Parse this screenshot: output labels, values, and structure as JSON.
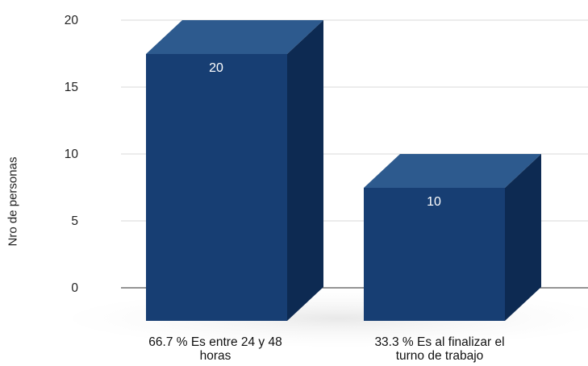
{
  "chart_data": {
    "type": "bar",
    "ylabel": "Nro de personas",
    "ylim": [
      0,
      20
    ],
    "yticks": [
      "0",
      "5",
      "10",
      "15",
      "20"
    ],
    "grid": true,
    "categories": [
      [
        "66.7 % Es entre 24 y 48",
        "horas"
      ],
      [
        "33.3 % Es al finalizar el",
        "turno de trabajo"
      ]
    ],
    "values": [
      20,
      10
    ],
    "data_labels": [
      "20",
      "10"
    ],
    "colors": {
      "bar_front": "#173E73",
      "bar_top": "#2D5A8E",
      "bar_side": "#0D2A52",
      "gridline": "#D9D9D9",
      "baseline": "#555555"
    }
  }
}
